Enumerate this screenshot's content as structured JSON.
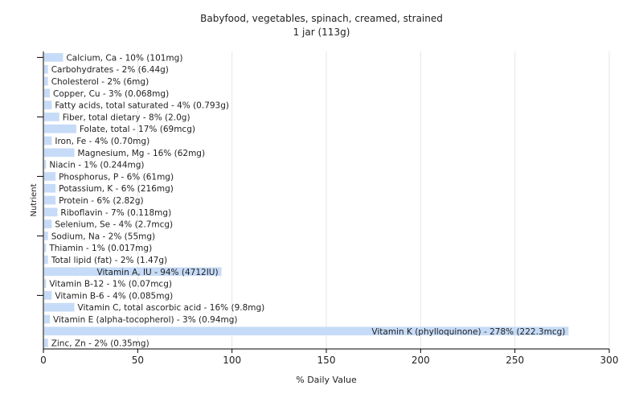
{
  "chart_data": {
    "type": "bar",
    "orientation": "horizontal",
    "title": "Babyfood, vegetables, spinach, creamed, strained",
    "subtitle": "1 jar (113g)",
    "xlabel": "% Daily Value",
    "ylabel": "Nutrient",
    "xlim": [
      0,
      300
    ],
    "xticks": [
      0,
      50,
      100,
      150,
      200,
      250,
      300
    ],
    "grid": true,
    "bar_color": "#c6dbf7",
    "categories": [
      "Calcium, Ca",
      "Carbohydrates",
      "Cholesterol",
      "Copper, Cu",
      "Fatty acids, total saturated",
      "Fiber, total dietary",
      "Folate, total",
      "Iron, Fe",
      "Magnesium, Mg",
      "Niacin",
      "Phosphorus, P",
      "Potassium, K",
      "Protein",
      "Riboflavin",
      "Selenium, Se",
      "Sodium, Na",
      "Thiamin",
      "Total lipid (fat)",
      "Vitamin A, IU",
      "Vitamin B-12",
      "Vitamin B-6",
      "Vitamin C, total ascorbic acid",
      "Vitamin E (alpha-tocopherol)",
      "Vitamin K (phylloquinone)",
      "Zinc, Zn"
    ],
    "values": [
      10,
      2,
      2,
      3,
      4,
      8,
      17,
      4,
      16,
      1,
      6,
      6,
      6,
      7,
      4,
      2,
      1,
      2,
      94,
      1,
      4,
      16,
      3,
      278,
      2
    ],
    "labels": [
      "Calcium, Ca - 10% (101mg)",
      "Carbohydrates - 2% (6.44g)",
      "Cholesterol - 2% (6mg)",
      "Copper, Cu - 3% (0.068mg)",
      "Fatty acids, total saturated - 4% (0.793g)",
      "Fiber, total dietary - 8% (2.0g)",
      "Folate, total - 17% (69mcg)",
      "Iron, Fe - 4% (0.70mg)",
      "Magnesium, Mg - 16% (62mg)",
      "Niacin - 1% (0.244mg)",
      "Phosphorus, P - 6% (61mg)",
      "Potassium, K - 6% (216mg)",
      "Protein - 6% (2.82g)",
      "Riboflavin - 7% (0.118mg)",
      "Selenium, Se - 4% (2.7mcg)",
      "Sodium, Na - 2% (55mg)",
      "Thiamin - 1% (0.017mg)",
      "Total lipid (fat) - 2% (1.47g)",
      "Vitamin A, IU - 94% (4712IU)",
      "Vitamin B-12 - 1% (0.07mcg)",
      "Vitamin B-6 - 4% (0.085mg)",
      "Vitamin C, total ascorbic acid - 16% (9.8mg)",
      "Vitamin E (alpha-tocopherol) - 3% (0.94mg)",
      "Vitamin K (phylloquinone) - 278% (222.3mcg)",
      "Zinc, Zn - 2% (0.35mg)"
    ]
  }
}
